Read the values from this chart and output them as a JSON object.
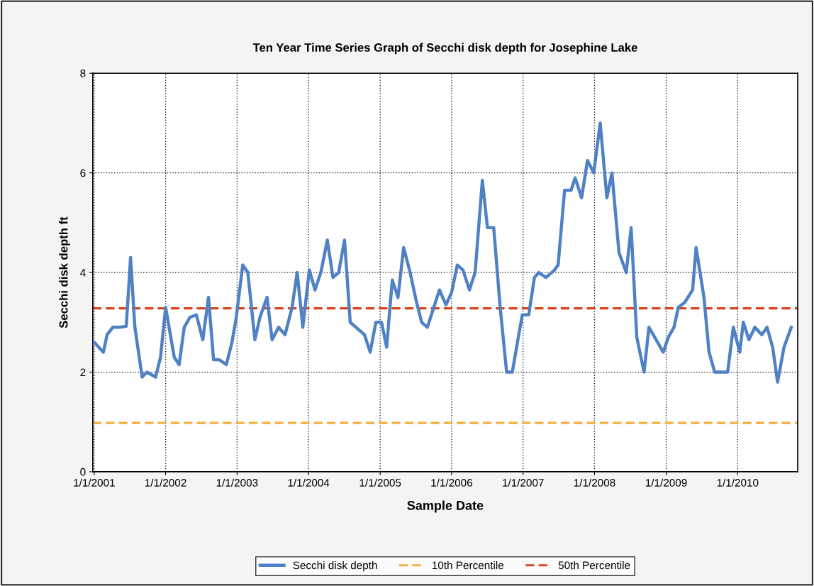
{
  "chart_data": {
    "type": "line",
    "title": "Ten Year Time Series Graph of Secchi disk depth for Josephine Lake",
    "xlabel": "Sample Date",
    "ylabel": "Secchi disk depth ft",
    "series": [
      {
        "name": "Secchi disk depth",
        "color": "#4f81c4",
        "x": [
          "2001-01-01",
          "2001-02-17",
          "2001-03-08",
          "2001-04-06",
          "2001-05-12",
          "2001-06-14",
          "2001-07-06",
          "2001-07-28",
          "2001-09-03",
          "2001-09-28",
          "2001-11-11",
          "2001-12-06",
          "2002-01-01",
          "2002-02-14",
          "2002-03-11",
          "2002-04-06",
          "2002-05-05",
          "2002-06-07",
          "2002-07-10",
          "2002-08-08",
          "2002-09-03",
          "2002-10-02",
          "2002-11-07",
          "2002-12-06",
          "2002-12-28",
          "2003-01-30",
          "2003-02-25",
          "2003-04-02",
          "2003-04-28",
          "2003-06-03",
          "2003-06-29",
          "2003-08-01",
          "2003-09-03",
          "2003-10-09",
          "2003-11-04",
          "2003-12-03",
          "2004-01-05",
          "2004-02-03",
          "2004-03-04",
          "2004-04-06",
          "2004-05-05",
          "2004-06-03",
          "2004-07-03",
          "2004-08-01",
          "2004-09-14",
          "2004-10-13",
          "2004-11-11",
          "2004-12-10",
          "2005-01-08",
          "2005-02-03",
          "2005-03-04",
          "2005-04-02",
          "2005-05-01",
          "2005-06-03",
          "2005-07-03",
          "2005-08-01",
          "2005-08-30",
          "2005-10-02",
          "2005-10-31",
          "2005-12-03",
          "2006-01-01",
          "2006-01-30",
          "2006-02-28",
          "2006-04-02",
          "2006-05-01",
          "2006-06-07",
          "2006-07-03",
          "2006-08-04",
          "2006-09-06",
          "2006-10-09",
          "2006-11-07",
          "2006-12-10",
          "2006-12-28",
          "2007-01-30",
          "2007-02-28",
          "2007-03-22",
          "2007-04-28",
          "2007-06-11",
          "2007-06-29",
          "2007-08-01",
          "2007-09-03",
          "2007-09-24",
          "2007-10-27",
          "2007-11-26",
          "2007-12-28",
          "2008-01-30",
          "2008-03-04",
          "2008-03-30",
          "2008-05-05",
          "2008-06-11",
          "2008-07-06",
          "2008-08-04",
          "2008-09-10",
          "2008-10-05",
          "2008-12-17",
          "2009-01-12",
          "2009-02-10",
          "2009-03-04",
          "2009-04-06",
          "2009-05-16",
          "2009-06-03",
          "2009-07-13",
          "2009-08-08",
          "2009-09-06",
          "2009-11-11",
          "2009-12-10",
          "2010-01-12",
          "2010-01-30",
          "2010-02-28",
          "2010-03-30",
          "2010-05-05",
          "2010-05-31",
          "2010-06-29",
          "2010-07-24",
          "2010-08-26",
          "2010-10-02"
        ],
        "values": [
          2.6,
          2.4,
          2.75,
          2.9,
          2.9,
          2.92,
          4.3,
          2.9,
          1.9,
          2.0,
          1.9,
          2.3,
          3.3,
          2.3,
          2.15,
          2.9,
          3.1,
          3.15,
          2.65,
          3.5,
          2.25,
          2.25,
          2.15,
          2.6,
          3.1,
          4.15,
          4.0,
          2.65,
          3.1,
          3.5,
          2.65,
          2.9,
          2.75,
          3.3,
          4.0,
          2.9,
          4.05,
          3.65,
          4.0,
          4.65,
          3.9,
          4.0,
          4.65,
          3.0,
          2.85,
          2.75,
          2.4,
          3.0,
          3.0,
          2.5,
          3.85,
          3.5,
          4.5,
          4.0,
          3.45,
          3.0,
          2.9,
          3.3,
          3.65,
          3.35,
          3.6,
          4.15,
          4.05,
          3.65,
          4.0,
          5.85,
          4.9,
          4.9,
          3.3,
          2.0,
          2.0,
          2.75,
          3.15,
          3.15,
          3.9,
          4.0,
          3.9,
          4.05,
          4.15,
          5.65,
          5.65,
          5.9,
          5.5,
          6.25,
          6.0,
          7.0,
          5.5,
          6.0,
          4.4,
          4.0,
          4.9,
          2.7,
          2.0,
          2.9,
          2.4,
          2.7,
          2.9,
          3.3,
          3.4,
          3.65,
          4.5,
          3.5,
          2.4,
          2.0,
          2.0,
          2.9,
          2.4,
          3.0,
          2.65,
          2.9,
          2.75,
          2.9,
          2.5,
          1.8,
          2.5,
          2.9
        ]
      }
    ],
    "ref_lines": [
      {
        "axis": "y",
        "value": 0.98,
        "label": "10th Percentile",
        "color": "#f5b041",
        "line_style": "dashed"
      },
      {
        "axis": "y",
        "value": 3.28,
        "label": "50th Percentile",
        "color": "#d4461c",
        "line_style": "dashed"
      }
    ],
    "xlim": [
      "2000-12-25",
      "2010-11-04"
    ],
    "xticks": [
      {
        "value": "2001-01-01",
        "label": "1/1/2001"
      },
      {
        "value": "2002-01-01",
        "label": "1/1/2002"
      },
      {
        "value": "2003-01-01",
        "label": "1/1/2003"
      },
      {
        "value": "2004-01-01",
        "label": "1/1/2004"
      },
      {
        "value": "2005-01-01",
        "label": "1/1/2005"
      },
      {
        "value": "2006-01-01",
        "label": "1/1/2006"
      },
      {
        "value": "2007-01-01",
        "label": "1/1/2007"
      },
      {
        "value": "2008-01-01",
        "label": "1/1/2008"
      },
      {
        "value": "2009-01-01",
        "label": "1/1/2009"
      },
      {
        "value": "2010-01-01",
        "label": "1/1/2010"
      }
    ],
    "ylim": [
      0,
      8
    ],
    "yticks": [
      0,
      2,
      4,
      6,
      8
    ],
    "grid": true,
    "legend": "bottom",
    "line_style": "solid"
  }
}
